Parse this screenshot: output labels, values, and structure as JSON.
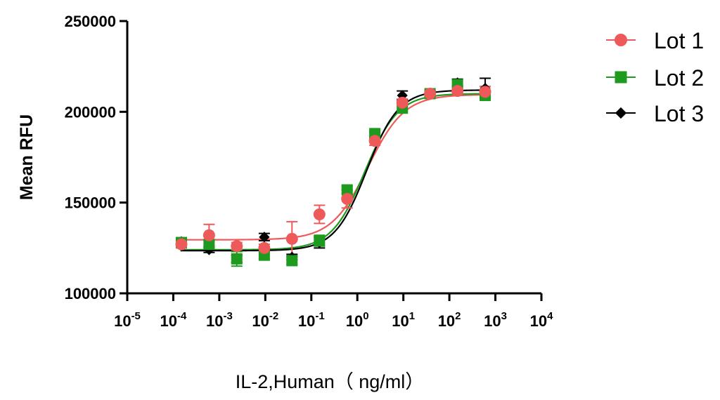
{
  "chart_data": {
    "type": "scatter",
    "title": "",
    "xlabel": "IL-2,Human（ ng/ml）",
    "ylabel": "Mean RFU",
    "x_scale": "log10",
    "xlim": [
      1e-05,
      10000
    ],
    "ylim": [
      100000,
      250000
    ],
    "x_ticks": [
      {
        "base": "10",
        "exp": "-5"
      },
      {
        "base": "10",
        "exp": "-4"
      },
      {
        "base": "10",
        "exp": "-3"
      },
      {
        "base": "10",
        "exp": "-2"
      },
      {
        "base": "10",
        "exp": "-1"
      },
      {
        "base": "10",
        "exp": "0"
      },
      {
        "base": "10",
        "exp": "1"
      },
      {
        "base": "10",
        "exp": "2"
      },
      {
        "base": "10",
        "exp": "3"
      },
      {
        "base": "10",
        "exp": "4"
      }
    ],
    "y_ticks": [
      "100000",
      "150000",
      "200000",
      "250000"
    ],
    "grid": false,
    "legend_position": "top-right",
    "x": [
      0.00015,
      0.0006,
      0.0024,
      0.0095,
      0.038,
      0.15,
      0.6,
      2.4,
      9.5,
      38,
      150,
      600
    ],
    "series": [
      {
        "name": "Lot 1",
        "color": "#ee5a5a",
        "marker": "circle",
        "values": [
          127000,
          132000,
          126000,
          125000,
          130000,
          143500,
          152000,
          184000,
          205000,
          210000,
          211500,
          211000
        ],
        "errors": [
          2000,
          6000,
          2000,
          2000,
          9500,
          5000,
          5000,
          2500,
          2000,
          1500,
          1500,
          3000
        ],
        "fit": {
          "bottom": 129500,
          "top": 209500,
          "ec50": 1.7,
          "hill": 1.1
        }
      },
      {
        "name": "Lot 2",
        "color": "#1e9a1e",
        "marker": "square",
        "values": [
          128000,
          127000,
          119000,
          121000,
          118000,
          129000,
          157000,
          188000,
          202000,
          210000,
          215000,
          209000
        ],
        "errors": [
          2000,
          2000,
          4000,
          2000,
          2000,
          3000,
          2000,
          1500,
          2000,
          1500,
          2500,
          2000
        ],
        "fit": {
          "bottom": 124000,
          "top": 210000,
          "ec50": 1.45,
          "hill": 1.2
        }
      },
      {
        "name": "Lot 3",
        "color": "#000000",
        "marker": "diamond",
        "values": [
          128500,
          124000,
          119000,
          131000,
          120000,
          128000,
          155000,
          187000,
          209000,
          210000,
          216000,
          213000
        ],
        "errors": [
          1500,
          1500,
          2000,
          2000,
          1500,
          3000,
          2000,
          1500,
          2500,
          1500,
          2000,
          5500
        ],
        "fit": {
          "bottom": 123500,
          "top": 212000,
          "ec50": 1.6,
          "hill": 1.25
        }
      }
    ]
  }
}
